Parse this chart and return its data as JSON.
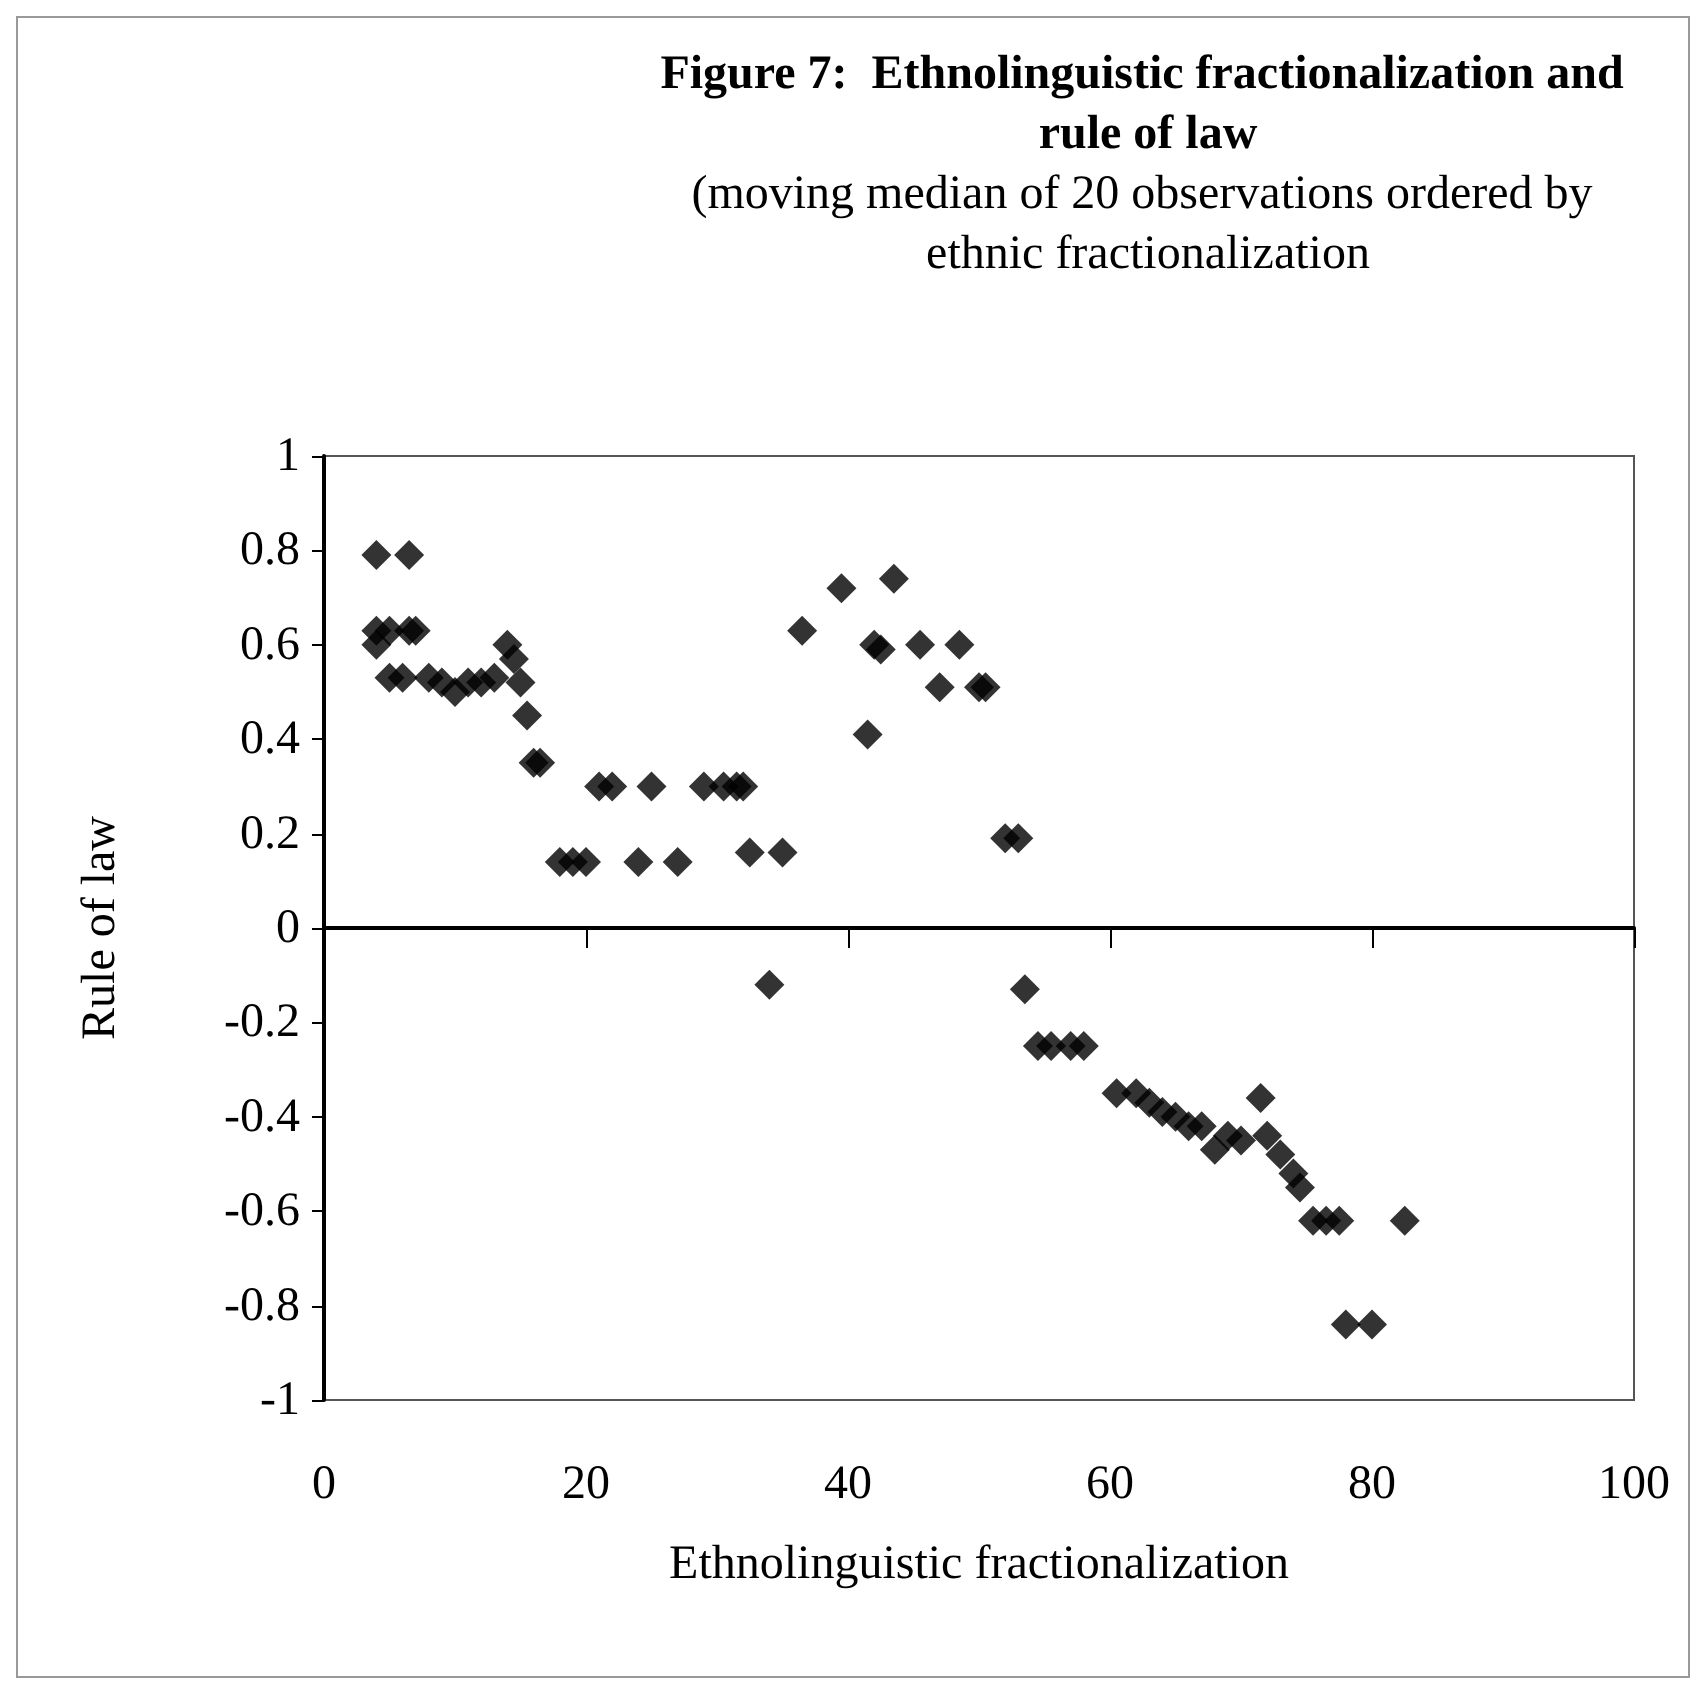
{
  "chart_data": {
    "type": "scatter",
    "title": "Figure 7:  Ethnolinguistic fractionalization and rule of law",
    "subtitle": "(moving median of 20 observations ordered by ethnic fractionalization",
    "xlabel": "Ethnolinguistic fractionalization",
    "ylabel": "Rule of law",
    "xlim": [
      0,
      100
    ],
    "xticks": [
      0,
      20,
      40,
      60,
      80,
      100
    ],
    "ylim": [
      -1,
      1
    ],
    "yticks": [
      -1,
      -0.8,
      -0.6,
      -0.4,
      -0.2,
      0,
      0.2,
      0.4,
      0.6,
      0.8,
      1
    ],
    "marker": "diamond",
    "series": [
      {
        "color": "#000000",
        "x": [
          4,
          6.5,
          4,
          5,
          6.5,
          7,
          4,
          5,
          6,
          8,
          10,
          9,
          11,
          12,
          13,
          14,
          14.5,
          15,
          15.5,
          16,
          16.5,
          18,
          19,
          20,
          21,
          22,
          24,
          25,
          27,
          29,
          30.5,
          31.5,
          32,
          32.5,
          35,
          34,
          36.5,
          39.5,
          41.5,
          42,
          42.5,
          43.5,
          45.5,
          47,
          48.5,
          50,
          50.5,
          52,
          53,
          53.5,
          54.5,
          55.5,
          57,
          58,
          60.5,
          62,
          63,
          64,
          65,
          66,
          67,
          68,
          69,
          70,
          71.5,
          72,
          73,
          74,
          74.5,
          75.5,
          76.5,
          77.5,
          78,
          80,
          82.5
        ],
        "values": [
          0.79,
          0.79,
          0.63,
          0.63,
          0.63,
          0.63,
          0.6,
          0.53,
          0.53,
          0.53,
          0.5,
          0.52,
          0.52,
          0.52,
          0.53,
          0.6,
          0.57,
          0.52,
          0.45,
          0.35,
          0.35,
          0.14,
          0.14,
          0.14,
          0.3,
          0.3,
          0.14,
          0.3,
          0.14,
          0.3,
          0.3,
          0.3,
          0.3,
          0.16,
          0.16,
          -0.12,
          0.63,
          0.72,
          0.41,
          0.6,
          0.59,
          0.74,
          0.6,
          0.51,
          0.6,
          0.51,
          0.51,
          0.19,
          0.19,
          -0.13,
          -0.25,
          -0.25,
          -0.25,
          -0.25,
          -0.35,
          -0.35,
          -0.37,
          -0.39,
          -0.4,
          -0.42,
          -0.42,
          -0.47,
          -0.44,
          -0.45,
          -0.36,
          -0.44,
          -0.48,
          -0.52,
          -0.55,
          -0.62,
          -0.62,
          -0.62,
          -0.84,
          -0.84,
          -0.62
        ]
      }
    ]
  }
}
